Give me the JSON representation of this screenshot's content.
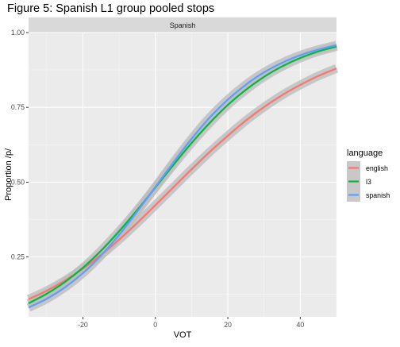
{
  "chart_data": {
    "type": "line",
    "title": "Figure 5: Spanish L1 group pooled stops",
    "facet_label": "Spanish",
    "xlabel": "VOT",
    "ylabel": "Proportion /p/",
    "xlim": [
      -35,
      50
    ],
    "ylim": [
      0.05,
      1.0
    ],
    "x_ticks": [
      -20,
      0,
      20,
      40
    ],
    "y_ticks": [
      0.25,
      0.5,
      0.75,
      1.0
    ],
    "y_tick_labels": [
      "0.25",
      "0.50",
      "0.75",
      "1.00"
    ],
    "grid": true,
    "confidence_band": true,
    "legend_title": "language",
    "legend_position": "right",
    "x": [
      -35,
      -30,
      -25,
      -20,
      -15,
      -10,
      -5,
      0,
      5,
      10,
      15,
      20,
      25,
      30,
      35,
      40,
      45,
      50
    ],
    "series": [
      {
        "name": "english",
        "color": "#F8766D",
        "values": [
          0.109,
          0.137,
          0.171,
          0.211,
          0.257,
          0.308,
          0.364,
          0.423,
          0.483,
          0.543,
          0.601,
          0.655,
          0.706,
          0.751,
          0.791,
          0.825,
          0.855,
          0.88
        ]
      },
      {
        "name": "l3",
        "color": "#00BA38",
        "values": [
          0.095,
          0.127,
          0.166,
          0.214,
          0.271,
          0.336,
          0.407,
          0.482,
          0.558,
          0.631,
          0.698,
          0.758,
          0.809,
          0.852,
          0.887,
          0.915,
          0.937,
          0.953
        ]
      },
      {
        "name": "spanish",
        "color": "#619CFF",
        "values": [
          0.081,
          0.11,
          0.148,
          0.196,
          0.255,
          0.324,
          0.402,
          0.484,
          0.566,
          0.645,
          0.716,
          0.776,
          0.826,
          0.867,
          0.899,
          0.924,
          0.943,
          0.958
        ]
      }
    ]
  }
}
